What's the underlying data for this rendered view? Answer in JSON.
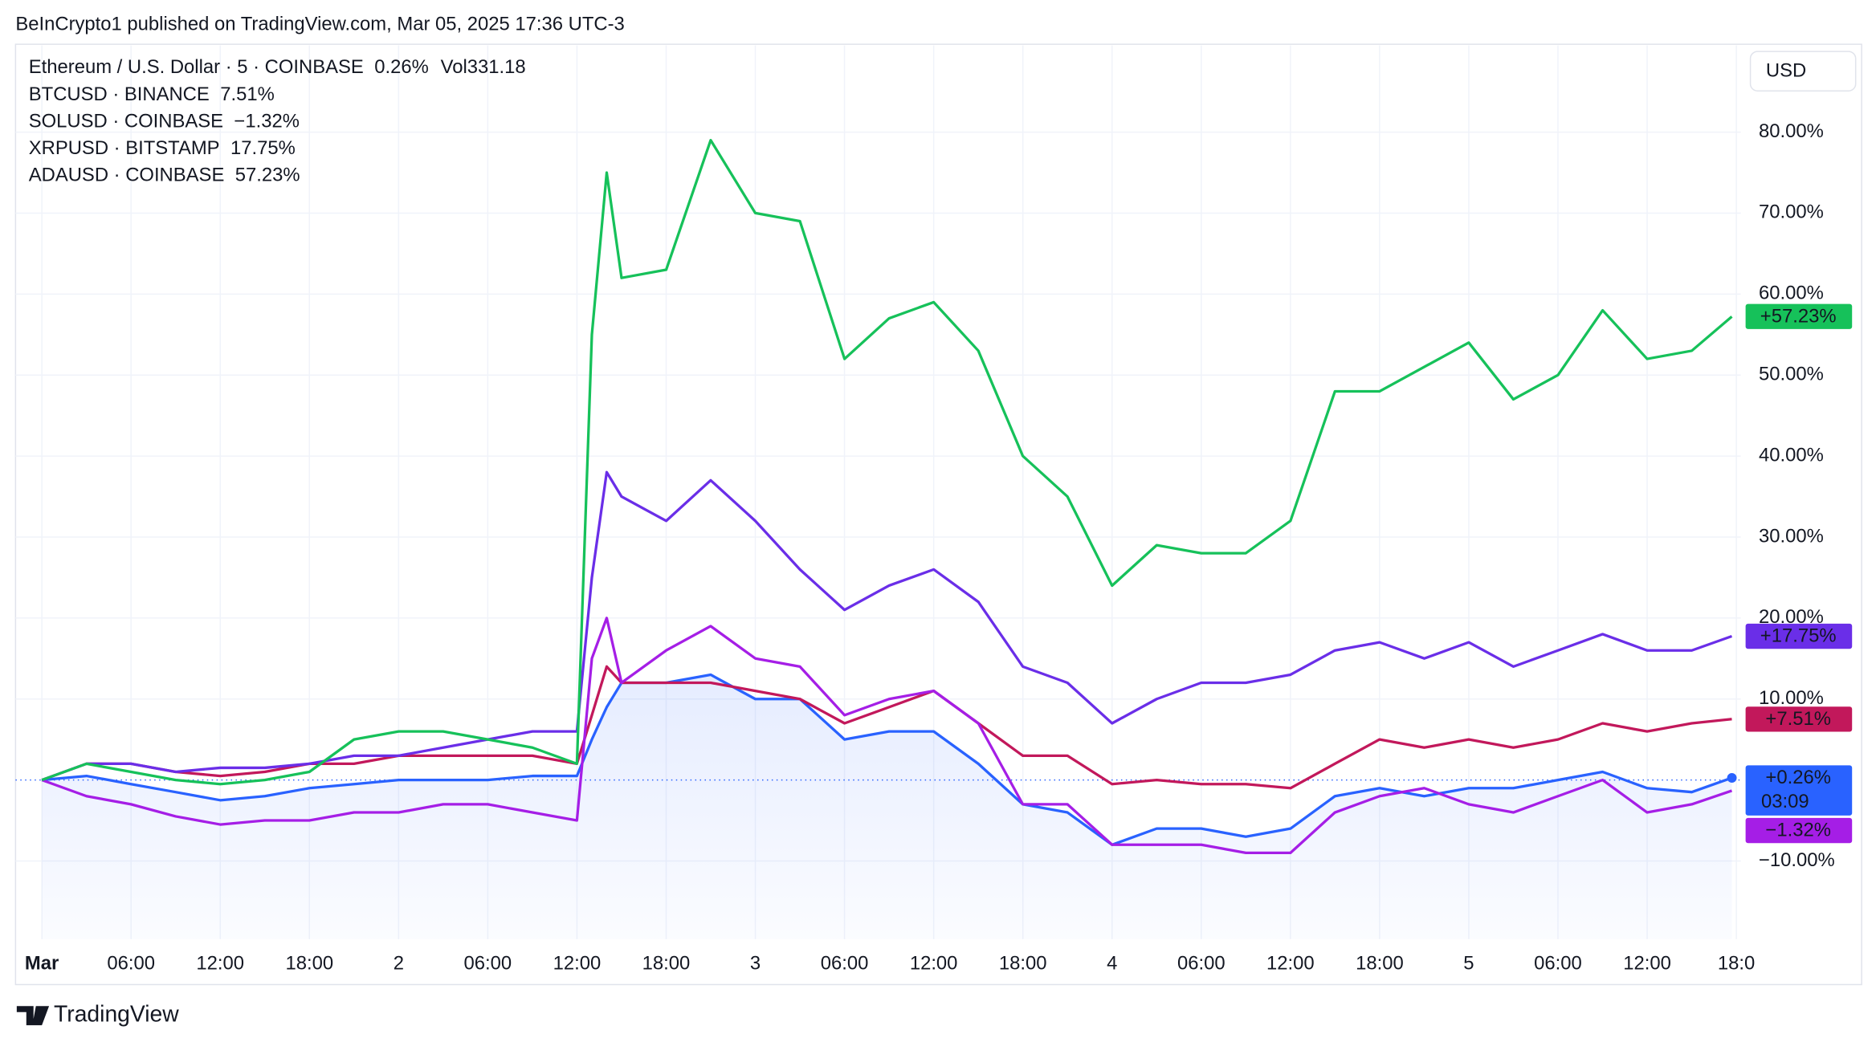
{
  "header": {
    "published": "BeInCrypto1 published on TradingView.com, Mar 05, 2025 17:36 UTC-3",
    "currency_button": "USD",
    "brand": "TradingView"
  },
  "chart_data": {
    "type": "line",
    "x": [
      0,
      3,
      6,
      9,
      12,
      15,
      18,
      21,
      24,
      27,
      30,
      33,
      36,
      37,
      38,
      39,
      42,
      45,
      48,
      51,
      54,
      57,
      60,
      63,
      66,
      69,
      72,
      75,
      78,
      81,
      84,
      87,
      90,
      93,
      96,
      99,
      102,
      105,
      108,
      111,
      113.7
    ],
    "xlim": [
      -1.77,
      114.3
    ],
    "xticks": [
      {
        "value": 0,
        "label": "Mar"
      },
      {
        "value": 6,
        "label": "06:00"
      },
      {
        "value": 12,
        "label": "12:00"
      },
      {
        "value": 18,
        "label": "18:00"
      },
      {
        "value": 24,
        "label": "2"
      },
      {
        "value": 30,
        "label": "06:00"
      },
      {
        "value": 36,
        "label": "12:00"
      },
      {
        "value": 42,
        "label": "18:00"
      },
      {
        "value": 48,
        "label": "3"
      },
      {
        "value": 54,
        "label": "06:00"
      },
      {
        "value": 60,
        "label": "12:00"
      },
      {
        "value": 66,
        "label": "18:00"
      },
      {
        "value": 72,
        "label": "4"
      },
      {
        "value": 78,
        "label": "06:00"
      },
      {
        "value": 84,
        "label": "12:00"
      },
      {
        "value": 90,
        "label": "18:00"
      },
      {
        "value": 96,
        "label": "5"
      },
      {
        "value": 102,
        "label": "06:00"
      },
      {
        "value": 108,
        "label": "12:00"
      },
      {
        "value": 114,
        "label": "18:0"
      }
    ],
    "ylim": [
      -19.65,
      90.7
    ],
    "yticks": [
      {
        "value": -10,
        "label": "−10.00%"
      },
      {
        "value": 10,
        "label": "10.00%"
      },
      {
        "value": 20,
        "label": "20.00%"
      },
      {
        "value": 30,
        "label": "30.00%"
      },
      {
        "value": 40,
        "label": "40.00%"
      },
      {
        "value": 50,
        "label": "50.00%"
      },
      {
        "value": 60,
        "label": "60.00%"
      },
      {
        "value": 70,
        "label": "70.00%"
      },
      {
        "value": 80,
        "label": "80.00%"
      }
    ],
    "grid": true,
    "series": [
      {
        "name": "Ethereum / U.S. Dollar · 5 · COINBASE",
        "color": "#2962ff",
        "area": true,
        "legend_label": "0.26%",
        "last_label": "+0.26%",
        "countdown": "03:09",
        "volume_title": "Vol",
        "volume": 331.18,
        "values": [
          0,
          0.5,
          -0.5,
          -1.5,
          -2.5,
          -2,
          -1,
          -0.5,
          0,
          0,
          0,
          0.5,
          0.5,
          5,
          9,
          12,
          12,
          13,
          10,
          10,
          5,
          6,
          6,
          2,
          -3,
          -4,
          -8,
          -6,
          -6,
          -7,
          -6,
          -2,
          -1,
          -2,
          -1,
          -1,
          0,
          1,
          -1,
          -1.5,
          0.26
        ]
      },
      {
        "name": "BTCUSD · BINANCE",
        "color": "#c2185b",
        "legend_label": "7.51%",
        "last_label": "+7.51%",
        "values": [
          0,
          2,
          2,
          1,
          0.5,
          1,
          2,
          2,
          3,
          3,
          3,
          3,
          2,
          8,
          14,
          12,
          12,
          12,
          11,
          10,
          7,
          9,
          11,
          7,
          3,
          3,
          -0.5,
          0,
          -0.5,
          -0.5,
          -1,
          2,
          5,
          4,
          5,
          4,
          5,
          7,
          6,
          7,
          7.51
        ]
      },
      {
        "name": "SOLUSD · COINBASE",
        "color": "#a51ee6",
        "legend_label": "−1.32%",
        "last_label": "−1.32%",
        "values": [
          0,
          -2,
          -3,
          -4.5,
          -5.5,
          -5,
          -5,
          -4,
          -4,
          -3,
          -3,
          -4,
          -5,
          15,
          20,
          12,
          16,
          19,
          15,
          14,
          8,
          10,
          11,
          7,
          -3,
          -3,
          -8,
          -8,
          -8,
          -9,
          -9,
          -4,
          -2,
          -1,
          -3,
          -4,
          -2,
          0,
          -4,
          -3,
          -1.32
        ]
      },
      {
        "name": "XRPUSD · BITSTAMP",
        "color": "#6a2ee8",
        "legend_label": "17.75%",
        "last_label": "+17.75%",
        "values": [
          0,
          2,
          2,
          1,
          1.5,
          1.5,
          2,
          3,
          3,
          4,
          5,
          6,
          6,
          25,
          38,
          35,
          32,
          37,
          32,
          26,
          21,
          24,
          26,
          22,
          14,
          12,
          7,
          10,
          12,
          12,
          13,
          16,
          17,
          15,
          17,
          14,
          16,
          18,
          16,
          16,
          17.75
        ]
      },
      {
        "name": "ADAUSD · COINBASE",
        "color": "#16c15a",
        "legend_label": "57.23%",
        "last_label": "+57.23%",
        "values": [
          0,
          2,
          1,
          0,
          -0.5,
          0,
          1,
          5,
          6,
          6,
          5,
          4,
          2,
          55,
          75,
          62,
          63,
          79,
          70,
          69,
          52,
          57,
          59,
          53,
          40,
          35,
          24,
          29,
          28,
          28,
          32,
          48,
          48,
          51,
          54,
          47,
          50,
          58,
          52,
          53,
          57.23
        ]
      }
    ]
  }
}
